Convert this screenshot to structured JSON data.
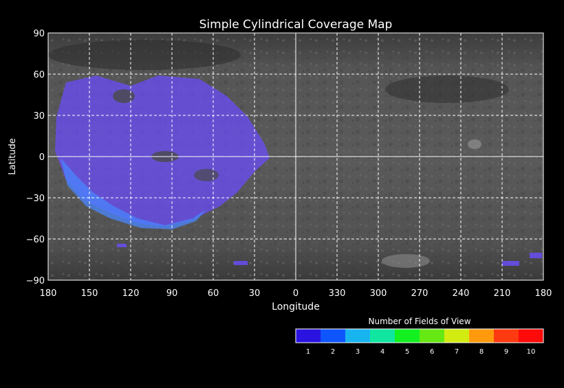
{
  "title": "Simple Cylindrical Coverage Map",
  "axes": {
    "xlabel": "Longitude",
    "ylabel": "Latitude",
    "x_ticks": [
      "180",
      "150",
      "120",
      "90",
      "60",
      "30",
      "0",
      "330",
      "300",
      "270",
      "240",
      "210",
      "180"
    ],
    "y_ticks": [
      "90",
      "60",
      "30",
      "0",
      "−30",
      "−60",
      "−90"
    ],
    "x_range_deg_east": [
      180,
      540
    ],
    "x_direction": "decreasing-east-longitude",
    "y_range": [
      -90,
      90
    ],
    "grid": true
  },
  "legend": {
    "title": "Number of Fields of View",
    "labels": [
      "1",
      "2",
      "3",
      "4",
      "5",
      "6",
      "7",
      "8",
      "9",
      "10"
    ],
    "colors": [
      "#2a12e0",
      "#0f55ff",
      "#18b4f0",
      "#10e6a0",
      "#12f020",
      "#66e812",
      "#d2ec12",
      "#ff9a0c",
      "#ff3a10",
      "#ff0a0a"
    ]
  },
  "map": {
    "background": "grayscale planetary basemap",
    "coverage_color": "#6b4cff",
    "coverage_2fov_color": "#4a86ff"
  }
}
